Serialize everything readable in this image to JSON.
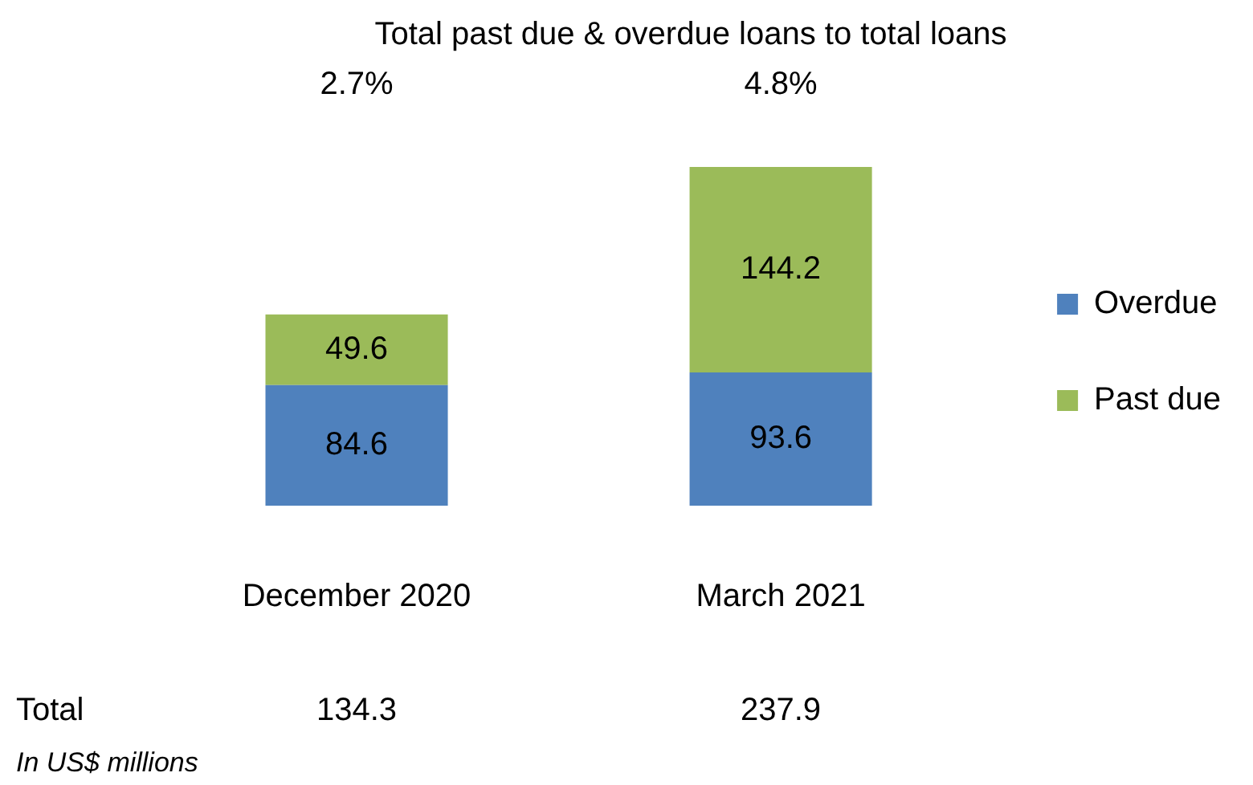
{
  "chart_data": {
    "type": "bar",
    "title": "Total past due & overdue loans to total loans",
    "categories": [
      "December 2020",
      "March 2021"
    ],
    "series": [
      {
        "name": "Overdue",
        "color": "#4f81bd",
        "values": [
          84.6,
          93.6
        ]
      },
      {
        "name": "Past due",
        "color": "#9bbb59",
        "values": [
          49.6,
          144.2
        ]
      }
    ],
    "stacked": true,
    "data_labels": true,
    "legend": "right",
    "grid": false,
    "annotations": [
      "2.7%",
      "4.8%",
      "Total",
      "134.3",
      "237.9",
      "In US$ millions"
    ]
  }
}
